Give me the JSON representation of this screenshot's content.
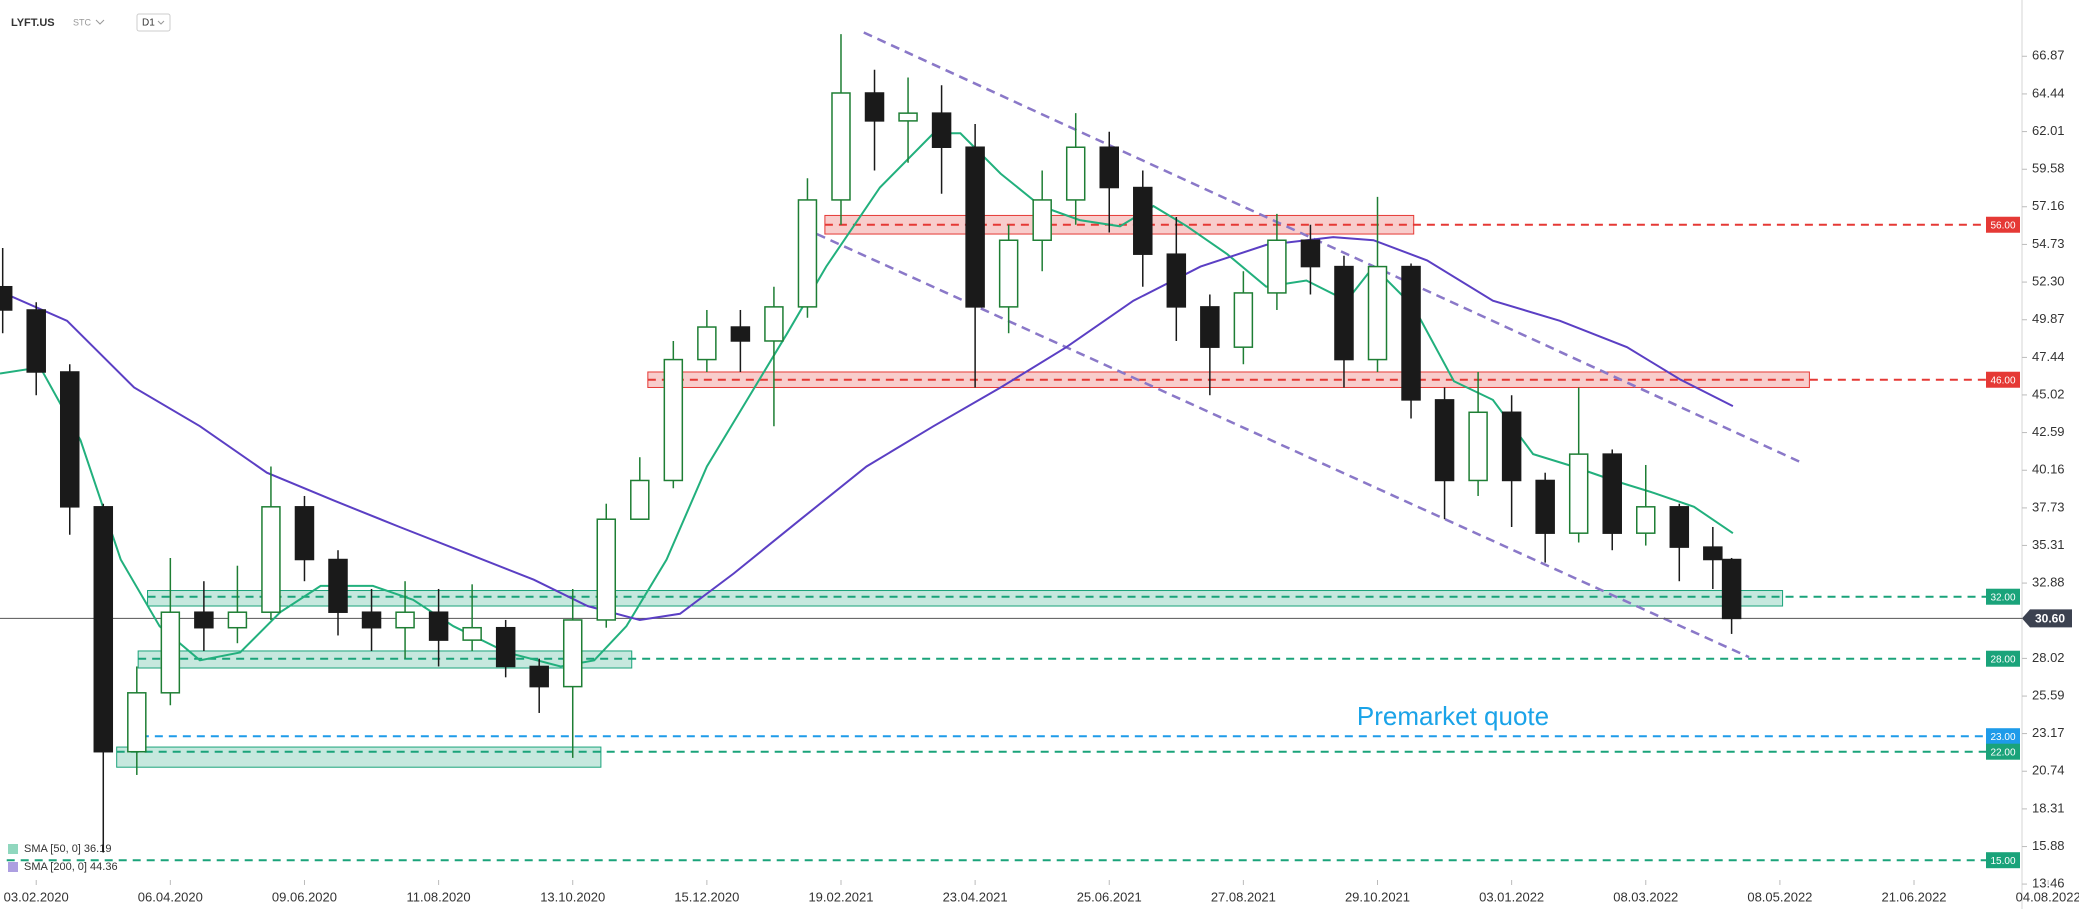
{
  "chart_data": {
    "type": "candlestick",
    "title": "LYFT.US",
    "subtitle": "STC",
    "timeframe": "D1",
    "up_color": "#1e7e34",
    "down_color": "#1a1a1a",
    "xlim": [
      -0.27,
      15.23
    ],
    "ylim": [
      13.4,
      70.5
    ],
    "xticks": [
      {
        "value": 0,
        "label": "03.02.2020"
      },
      {
        "value": 1,
        "label": "06.04.2020"
      },
      {
        "value": 2,
        "label": "09.06.2020"
      },
      {
        "value": 3,
        "label": "11.08.2020"
      },
      {
        "value": 4,
        "label": "13.10.2020"
      },
      {
        "value": 5,
        "label": "15.12.2020"
      },
      {
        "value": 6,
        "label": "19.02.2021"
      },
      {
        "value": 7,
        "label": "23.04.2021"
      },
      {
        "value": 8,
        "label": "25.06.2021"
      },
      {
        "value": 9,
        "label": "27.08.2021"
      },
      {
        "value": 10,
        "label": "29.10.2021"
      },
      {
        "value": 11,
        "label": "03.01.2022"
      },
      {
        "value": 12,
        "label": "08.03.2022"
      },
      {
        "value": 13,
        "label": "08.05.2022"
      },
      {
        "value": 14,
        "label": "21.06.2022"
      },
      {
        "value": 15,
        "label": "04.08.2022"
      }
    ],
    "yticks": [
      66.87,
      64.44,
      62.01,
      59.58,
      57.16,
      54.73,
      {
        "value": 52.3,
        "label": "52.30"
      },
      49.87,
      47.44,
      45.02,
      42.59,
      40.16,
      37.73,
      35.31,
      32.88,
      28.02,
      25.59,
      23.17,
      20.74,
      18.31,
      15.88,
      13.46
    ],
    "x": [
      -0.25,
      0,
      0.25,
      0.5,
      0.75,
      1,
      1.25,
      1.5,
      1.75,
      2,
      2.25,
      2.5,
      2.75,
      3,
      3.25,
      3.5,
      3.75,
      4,
      4.25,
      4.5,
      4.75,
      5,
      5.25,
      5.5,
      5.75,
      6,
      6.25,
      6.5,
      6.75,
      7,
      7.25,
      7.5,
      7.75,
      8,
      8.25,
      8.5,
      8.75,
      9,
      9.25,
      9.5,
      9.75,
      10,
      10.25,
      10.5,
      10.75,
      11,
      11.25,
      11.5,
      11.75,
      12,
      12.25,
      12.5,
      12.64
    ],
    "open": [
      52.0,
      50.5,
      46.5,
      37.8,
      22,
      25.8,
      31,
      30,
      31,
      37.8,
      34.4,
      31,
      30,
      31,
      29.2,
      30,
      27.5,
      26.2,
      30.5,
      37,
      39.5,
      47.3,
      49.4,
      48.5,
      50.7,
      57.6,
      64.5,
      62.7,
      63.2,
      61,
      50.7,
      55,
      57.6,
      61,
      58.4,
      54.1,
      50.7,
      48.1,
      51.6,
      55,
      53.3,
      47.3,
      53.3,
      44.7,
      39.5,
      43.9,
      39.5,
      36.1,
      41.2,
      36.1,
      37.8,
      35.2,
      34.4
    ],
    "high": [
      54.5,
      51,
      47,
      38,
      27.5,
      34.5,
      33,
      34,
      40.4,
      38.5,
      35,
      32.5,
      33,
      32.5,
      32.8,
      30.5,
      28,
      32.5,
      38,
      41,
      48.5,
      50.5,
      50.5,
      52,
      59,
      68.3,
      66,
      65.5,
      65,
      62.5,
      56,
      59.5,
      63.2,
      62,
      59.5,
      56.5,
      51.5,
      53,
      56.7,
      56,
      54,
      57.8,
      53.5,
      45.5,
      46.5,
      45,
      40,
      45.5,
      41.5,
      40.5,
      38,
      36.5,
      34.5
    ],
    "low": [
      49,
      45,
      36,
      15.5,
      20.5,
      25,
      28.5,
      29,
      30.5,
      33,
      29.5,
      28.5,
      28,
      27.5,
      28.5,
      26.8,
      24.5,
      21.6,
      30,
      37,
      39,
      46.5,
      46.5,
      43,
      50,
      56,
      59.5,
      60,
      58,
      45.5,
      49,
      53,
      56,
      55.5,
      52,
      48.5,
      45,
      47,
      50.5,
      51.5,
      45.5,
      46.5,
      43.5,
      37,
      38.5,
      36.5,
      34.2,
      35.5,
      35,
      35.3,
      33,
      32.5,
      29.6
    ],
    "close": [
      50.5,
      46.5,
      37.8,
      22,
      25.8,
      31,
      30,
      31,
      37.8,
      34.4,
      31,
      30,
      31,
      29.2,
      30,
      27.5,
      26.2,
      30.5,
      37,
      39.5,
      47.3,
      49.4,
      48.5,
      50.7,
      57.6,
      64.5,
      62.7,
      63.2,
      61,
      50.7,
      55,
      57.6,
      61,
      58.4,
      54.1,
      50.7,
      48.1,
      51.6,
      55,
      53.3,
      47.3,
      53.3,
      44.7,
      39.5,
      43.9,
      39.5,
      36.1,
      41.2,
      36.1,
      37.8,
      35.2,
      34.4,
      30.6
    ],
    "sma": [
      {
        "name": "SMA [50, 0] 36.19",
        "color": "#22b07d",
        "x": [
          -0.27,
          0.03,
          0.33,
          0.63,
          0.92,
          1.22,
          1.52,
          1.82,
          2.12,
          2.51,
          2.81,
          3.11,
          3.51,
          3.91,
          4.16,
          4.4,
          4.7,
          5.0,
          5.3,
          5.6,
          5.89,
          6.29,
          6.69,
          6.89,
          7.19,
          7.49,
          7.78,
          8.08,
          8.33,
          8.58,
          8.88,
          9.17,
          9.47,
          9.77,
          9.97,
          10.27,
          10.57,
          10.86,
          11.16,
          11.46,
          11.76,
          12.06,
          12.36,
          12.65
        ],
        "values": [
          46.4,
          46.8,
          42.1,
          34.4,
          30.1,
          27.9,
          28.4,
          31,
          32.7,
          32.7,
          31.8,
          30.1,
          28.4,
          27.5,
          27.9,
          30.1,
          34.4,
          40.4,
          44.7,
          49,
          53.3,
          58.4,
          61.9,
          61.9,
          59.3,
          57.2,
          56.3,
          55.9,
          57.2,
          55.9,
          54.1,
          52,
          52.4,
          51.1,
          53.3,
          50.7,
          45.9,
          44.7,
          41.2,
          40.4,
          39.5,
          38.7,
          37.8,
          36.1
        ]
      },
      {
        "name": "SMA [200, 0] 44.36",
        "color": "#5b3fc4",
        "x": [
          -0.27,
          0.23,
          0.73,
          1.22,
          1.72,
          2.22,
          2.71,
          3.21,
          3.71,
          4.11,
          4.5,
          4.8,
          5.2,
          5.7,
          6.19,
          6.69,
          7.19,
          7.68,
          8.18,
          8.68,
          9.17,
          9.67,
          9.97,
          10.37,
          10.86,
          11.36,
          11.86,
          12.26,
          12.65
        ],
        "values": [
          51.7,
          49.8,
          45.5,
          43,
          40,
          38.2,
          36.5,
          34.8,
          33.1,
          31.4,
          30.5,
          30.9,
          33.5,
          37,
          40.4,
          43,
          45.5,
          48.1,
          51.1,
          53.3,
          54.7,
          55.2,
          55,
          53.7,
          51.1,
          49.8,
          48.1,
          46,
          44.3
        ]
      }
    ],
    "trendlines": [
      {
        "color": "#8a78c8",
        "x": [
          6.17,
          13.15
        ],
        "values": [
          68.4,
          40.7
        ]
      },
      {
        "color": "#8a78c8",
        "x": [
          5.82,
          12.77
        ],
        "values": [
          55.4,
          28.1
        ]
      }
    ],
    "zones": [
      {
        "color": "#e53935",
        "x0": 5.88,
        "x1": 10.27,
        "low": 55.4,
        "high": 56.6
      },
      {
        "color": "#e53935",
        "x0": 4.56,
        "x1": 13.22,
        "low": 45.5,
        "high": 46.5
      },
      {
        "color": "#1aa37a",
        "x0": 0.83,
        "x1": 13.02,
        "low": 31.4,
        "high": 32.4
      },
      {
        "color": "#1aa37a",
        "x0": 0.76,
        "x1": 4.44,
        "low": 27.4,
        "high": 28.5
      },
      {
        "color": "#1aa37a",
        "x0": 0.6,
        "x1": 4.21,
        "low": 21.0,
        "high": 22.3
      }
    ],
    "levels": [
      {
        "value": 56,
        "label": "56.00",
        "color": "#e53935",
        "x0": 5.88
      },
      {
        "value": 46,
        "label": "46.00",
        "color": "#e53935",
        "x0": 4.56
      },
      {
        "value": 32,
        "label": "32.00",
        "color": "#1aa37a",
        "x0": 0.83
      },
      {
        "value": 28,
        "label": "28.00",
        "color": "#1aa37a",
        "x0": 0.76
      },
      {
        "value": 23,
        "label": "23.00",
        "color": "#1e9be9",
        "x0": 0.78
      },
      {
        "value": 22,
        "label": "22.00",
        "color": "#1aa37a",
        "x0": 0.6
      },
      {
        "value": 15,
        "label": "15.00",
        "color": "#1aa37a",
        "x0": -0.22
      }
    ],
    "current": {
      "value": 30.6,
      "label": "30.60",
      "color": "#3c4250"
    },
    "annotation": "Premarket quote"
  }
}
